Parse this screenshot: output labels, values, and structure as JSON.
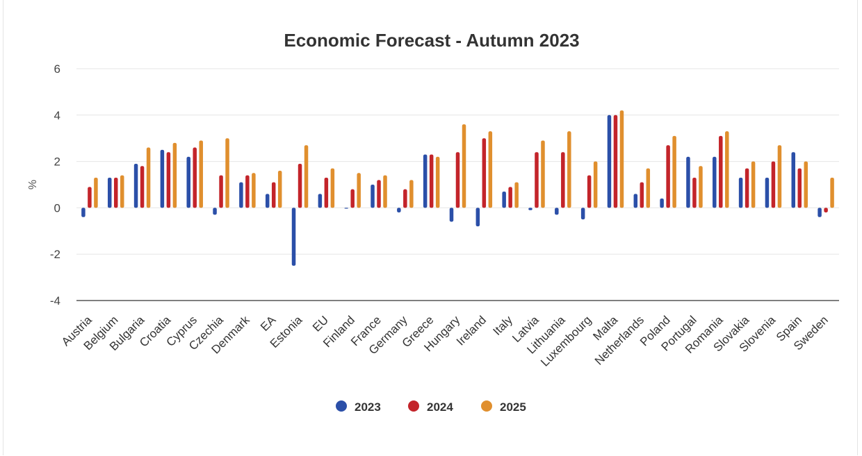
{
  "chart_data": {
    "type": "bar",
    "title": "Economic Forecast - Autumn 2023",
    "xlabel": "",
    "ylabel": "%",
    "ylim": [
      -4,
      6
    ],
    "yticks": [
      6,
      4,
      2,
      0,
      -2,
      -4
    ],
    "grid": true,
    "legend_position": "bottom-center",
    "categories": [
      "Austria",
      "Belgium",
      "Bulgaria",
      "Croatia",
      "Cyprus",
      "Czechia",
      "Denmark",
      "EA",
      "Estonia",
      "EU",
      "Finland",
      "France",
      "Germany",
      "Greece",
      "Hungary",
      "Ireland",
      "Italy",
      "Latvia",
      "Lithuania",
      "Luxembourg",
      "Malta",
      "Netherlands",
      "Poland",
      "Portugal",
      "Romania",
      "Slovakia",
      "Slovenia",
      "Spain",
      "Sweden"
    ],
    "series": [
      {
        "name": "2023",
        "color": "#2b4fa8",
        "values": [
          -0.4,
          1.3,
          1.9,
          2.5,
          2.2,
          -0.3,
          1.1,
          0.6,
          -2.5,
          0.6,
          0.0,
          1.0,
          -0.2,
          2.3,
          -0.6,
          -0.8,
          0.7,
          -0.1,
          -0.3,
          -0.5,
          4.0,
          0.6,
          0.4,
          2.2,
          2.2,
          1.3,
          1.3,
          2.4,
          -0.4
        ]
      },
      {
        "name": "2024",
        "color": "#c3242a",
        "values": [
          0.9,
          1.3,
          1.8,
          2.4,
          2.6,
          1.4,
          1.4,
          1.1,
          1.9,
          1.3,
          0.8,
          1.2,
          0.8,
          2.3,
          2.4,
          3.0,
          0.9,
          2.4,
          2.4,
          1.4,
          4.0,
          1.1,
          2.7,
          1.3,
          3.1,
          1.7,
          2.0,
          1.7,
          -0.2
        ]
      },
      {
        "name": "2025",
        "color": "#e08f2e",
        "values": [
          1.3,
          1.4,
          2.6,
          2.8,
          2.9,
          3.0,
          1.5,
          1.6,
          2.7,
          1.7,
          1.5,
          1.4,
          1.2,
          2.2,
          3.6,
          3.3,
          1.1,
          2.9,
          3.3,
          2.0,
          4.2,
          1.7,
          3.1,
          1.8,
          3.3,
          2.0,
          2.7,
          2.0,
          1.3
        ]
      }
    ]
  }
}
